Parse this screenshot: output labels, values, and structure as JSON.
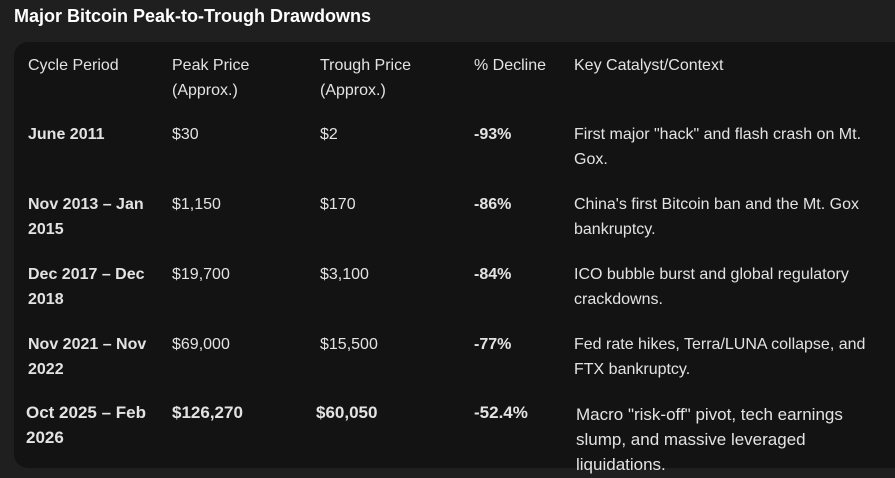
{
  "header": {
    "title": "Major Bitcoin Peak-to-Trough Drawdowns"
  },
  "table": {
    "columns": [
      "Cycle Period",
      "Peak Price (Approx.)",
      "Trough Price (Approx.)",
      "% Decline",
      "Key Catalyst/Context"
    ],
    "rows": [
      [
        "June 2011",
        "$30",
        "$2",
        "-93%",
        "First major \"hack\" and flash crash on Mt. Gox."
      ],
      [
        "Nov 2013 – Jan 2015",
        "$1,150",
        "$170",
        "-86%",
        "China's first Bitcoin ban and the Mt. Gox bankruptcy."
      ],
      [
        "Dec 2017 – Dec 2018",
        "$19,700",
        "$3,100",
        "-84%",
        "ICO bubble burst and global regulatory crackdowns."
      ],
      [
        "Nov 2021 – Nov 2022",
        "$69,000",
        "$15,500",
        "-77%",
        "Fed rate hikes, Terra/LUNA collapse, and FTX bankruptcy."
      ],
      [
        "Oct 2025 – Feb 2026",
        "$126,270",
        "$60,050",
        "-52.4%",
        "Macro \"risk-off\" pivot, tech earnings slump, and massive leveraged liquidations."
      ]
    ]
  }
}
